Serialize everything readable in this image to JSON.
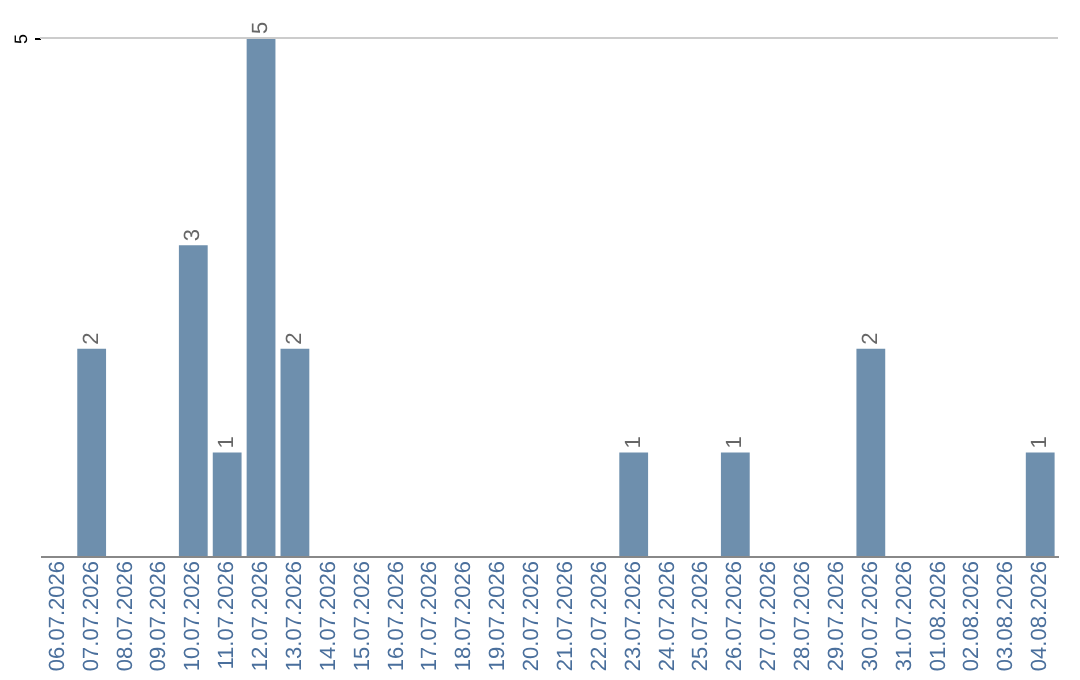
{
  "chart_data": {
    "type": "bar",
    "categories": [
      "06.07.2026",
      "07.07.2026",
      "08.07.2026",
      "09.07.2026",
      "10.07.2026",
      "11.07.2026",
      "12.07.2026",
      "13.07.2026",
      "14.07.2026",
      "15.07.2026",
      "16.07.2026",
      "17.07.2026",
      "18.07.2026",
      "19.07.2026",
      "20.07.2026",
      "21.07.2026",
      "22.07.2026",
      "23.07.2026",
      "24.07.2026",
      "25.07.2026",
      "26.07.2026",
      "27.07.2026",
      "28.07.2026",
      "29.07.2026",
      "30.07.2026",
      "31.07.2026",
      "01.08.2026",
      "02.08.2026",
      "03.08.2026",
      "04.08.2026"
    ],
    "values": [
      0,
      2,
      0,
      0,
      3,
      1,
      5,
      2,
      0,
      0,
      0,
      0,
      0,
      0,
      0,
      0,
      0,
      1,
      0,
      0,
      1,
      0,
      0,
      0,
      2,
      0,
      0,
      0,
      0,
      1
    ],
    "value_labels": [
      null,
      "2",
      null,
      null,
      "3",
      "1",
      "5",
      "2",
      null,
      null,
      null,
      null,
      null,
      null,
      null,
      null,
      null,
      "1",
      null,
      null,
      "1",
      null,
      null,
      null,
      "2",
      null,
      null,
      null,
      null,
      "1"
    ],
    "color": "#6e8fad",
    "ylim": [
      0,
      5
    ],
    "yticks": [
      5
    ]
  }
}
